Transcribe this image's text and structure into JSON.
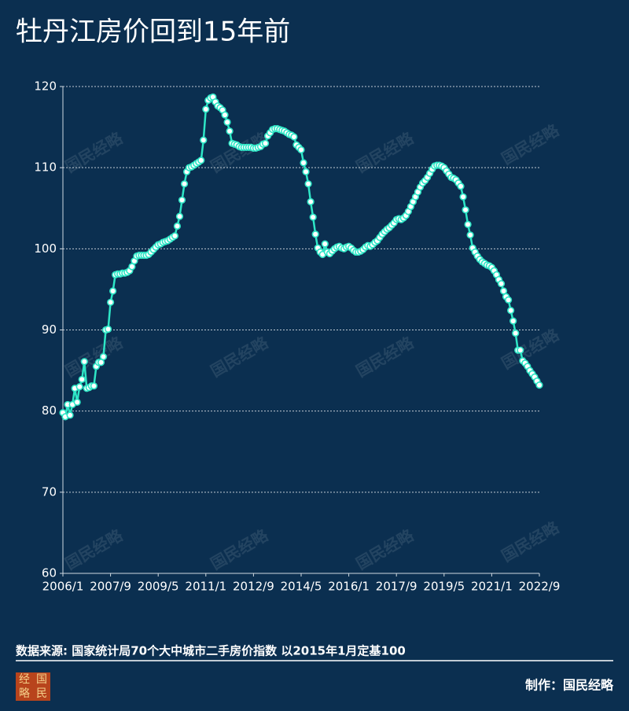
{
  "chart_data": {
    "type": "line",
    "title": "牡丹江房价回到15年前",
    "source": "数据来源: 国家统计局70个大中城市二手房价指数 以2015年1月定基100",
    "credit": "制作：国民经略",
    "watermark": "国民经略",
    "logo": [
      "经",
      "国",
      "略",
      "民"
    ],
    "color": "#2ee6c6",
    "categories": [
      "2006/1",
      null,
      null,
      null,
      null,
      null,
      null,
      null,
      null,
      null,
      null,
      null,
      null,
      null,
      null,
      null,
      null,
      null,
      null,
      null,
      "2007/9",
      null,
      null,
      null,
      null,
      null,
      null,
      null,
      null,
      null,
      null,
      null,
      null,
      null,
      null,
      null,
      null,
      null,
      null,
      null,
      "2009/5",
      null,
      null,
      null,
      null,
      null,
      null,
      null,
      null,
      null,
      null,
      null,
      null,
      null,
      null,
      null,
      null,
      null,
      null,
      null,
      "2011/1",
      null,
      null,
      null,
      null,
      null,
      null,
      null,
      null,
      null,
      null,
      null,
      null,
      null,
      null,
      null,
      null,
      null,
      null,
      null,
      "2012/9",
      null,
      null,
      null,
      null,
      null,
      null,
      null,
      null,
      null,
      null,
      null,
      null,
      null,
      null,
      null,
      null,
      null,
      null,
      null,
      "2014/5",
      null,
      null,
      null,
      null,
      null,
      null,
      null,
      null,
      null,
      null,
      null,
      null,
      null,
      null,
      null,
      null,
      null,
      null,
      null,
      "2016/1",
      null,
      null,
      null,
      null,
      null,
      null,
      null,
      null,
      null,
      null,
      null,
      null,
      null,
      null,
      null,
      null,
      null,
      null,
      null,
      "2017/9",
      null,
      null,
      null,
      null,
      null,
      null,
      null,
      null,
      null,
      null,
      null,
      null,
      null,
      null,
      null,
      null,
      null,
      null,
      null,
      "2019/5",
      null,
      null,
      null,
      null,
      null,
      null,
      null,
      null,
      null,
      null,
      null,
      null,
      null,
      null,
      null,
      null,
      null,
      null,
      null,
      "2021/1",
      null,
      null,
      null,
      null,
      null,
      null,
      null,
      null,
      null,
      null,
      null,
      null,
      null,
      null,
      null,
      null,
      null,
      null,
      null,
      "2022/9"
    ],
    "values": [
      79.8,
      79.3,
      80.8,
      79.5,
      80.8,
      82.8,
      81.1,
      83.0,
      83.9,
      86.1,
      82.8,
      82.9,
      83.1,
      83.1,
      85.5,
      86.0,
      86.0,
      86.7,
      90.0,
      90.1,
      93.4,
      94.8,
      96.8,
      96.9,
      96.9,
      97.0,
      97.0,
      97.1,
      97.3,
      97.8,
      98.5,
      99.1,
      99.2,
      99.2,
      99.2,
      99.2,
      99.3,
      99.6,
      99.9,
      100.2,
      100.5,
      100.6,
      100.8,
      100.9,
      101.0,
      101.2,
      101.4,
      101.6,
      102.8,
      104.0,
      106.0,
      108.0,
      109.5,
      110.0,
      110.1,
      110.3,
      110.5,
      110.7,
      110.9,
      113.4,
      117.2,
      118.3,
      118.6,
      118.7,
      118.1,
      117.6,
      117.4,
      117.1,
      116.5,
      115.6,
      114.5,
      113.0,
      112.9,
      112.8,
      112.6,
      112.5,
      112.5,
      112.5,
      112.5,
      112.5,
      112.4,
      112.4,
      112.5,
      112.6,
      112.9,
      113.0,
      113.9,
      114.3,
      114.7,
      114.8,
      114.8,
      114.7,
      114.6,
      114.5,
      114.3,
      114.1,
      114.0,
      113.8,
      112.8,
      112.5,
      112.2,
      110.6,
      109.5,
      108.0,
      105.8,
      103.9,
      101.8,
      100.1,
      99.6,
      99.3,
      100.6,
      99.6,
      99.4,
      99.7,
      100.0,
      100.2,
      100.3,
      100.1,
      100.0,
      100.2,
      100.3,
      100.1,
      99.8,
      99.6,
      99.6,
      99.7,
      99.9,
      100.2,
      100.4,
      100.3,
      100.5,
      100.8,
      101.0,
      101.4,
      101.8,
      102.1,
      102.4,
      102.6,
      102.9,
      103.2,
      103.6,
      103.7,
      103.6,
      103.8,
      104.1,
      104.6,
      105.2,
      105.8,
      106.4,
      107.0,
      107.6,
      108.1,
      108.4,
      108.8,
      109.3,
      109.8,
      110.2,
      110.3,
      110.3,
      110.2,
      110.0,
      109.6,
      109.2,
      108.8,
      108.7,
      108.5,
      108.1,
      107.7,
      106.4,
      104.8,
      103.0,
      101.7,
      100.1,
      99.6,
      99.1,
      98.7,
      98.4,
      98.2,
      98.0,
      97.9,
      97.7,
      97.3,
      96.8,
      96.2,
      95.7,
      94.8,
      94.1,
      93.7,
      92.4,
      91.1,
      89.6,
      87.5,
      87.5,
      86.2,
      85.9,
      85.5,
      85.0,
      84.6,
      84.2,
      83.7,
      83.2
    ],
    "ylim": [
      60,
      120
    ],
    "yticks": [
      60,
      70,
      80,
      90,
      100,
      110,
      120
    ],
    "grid": true
  }
}
